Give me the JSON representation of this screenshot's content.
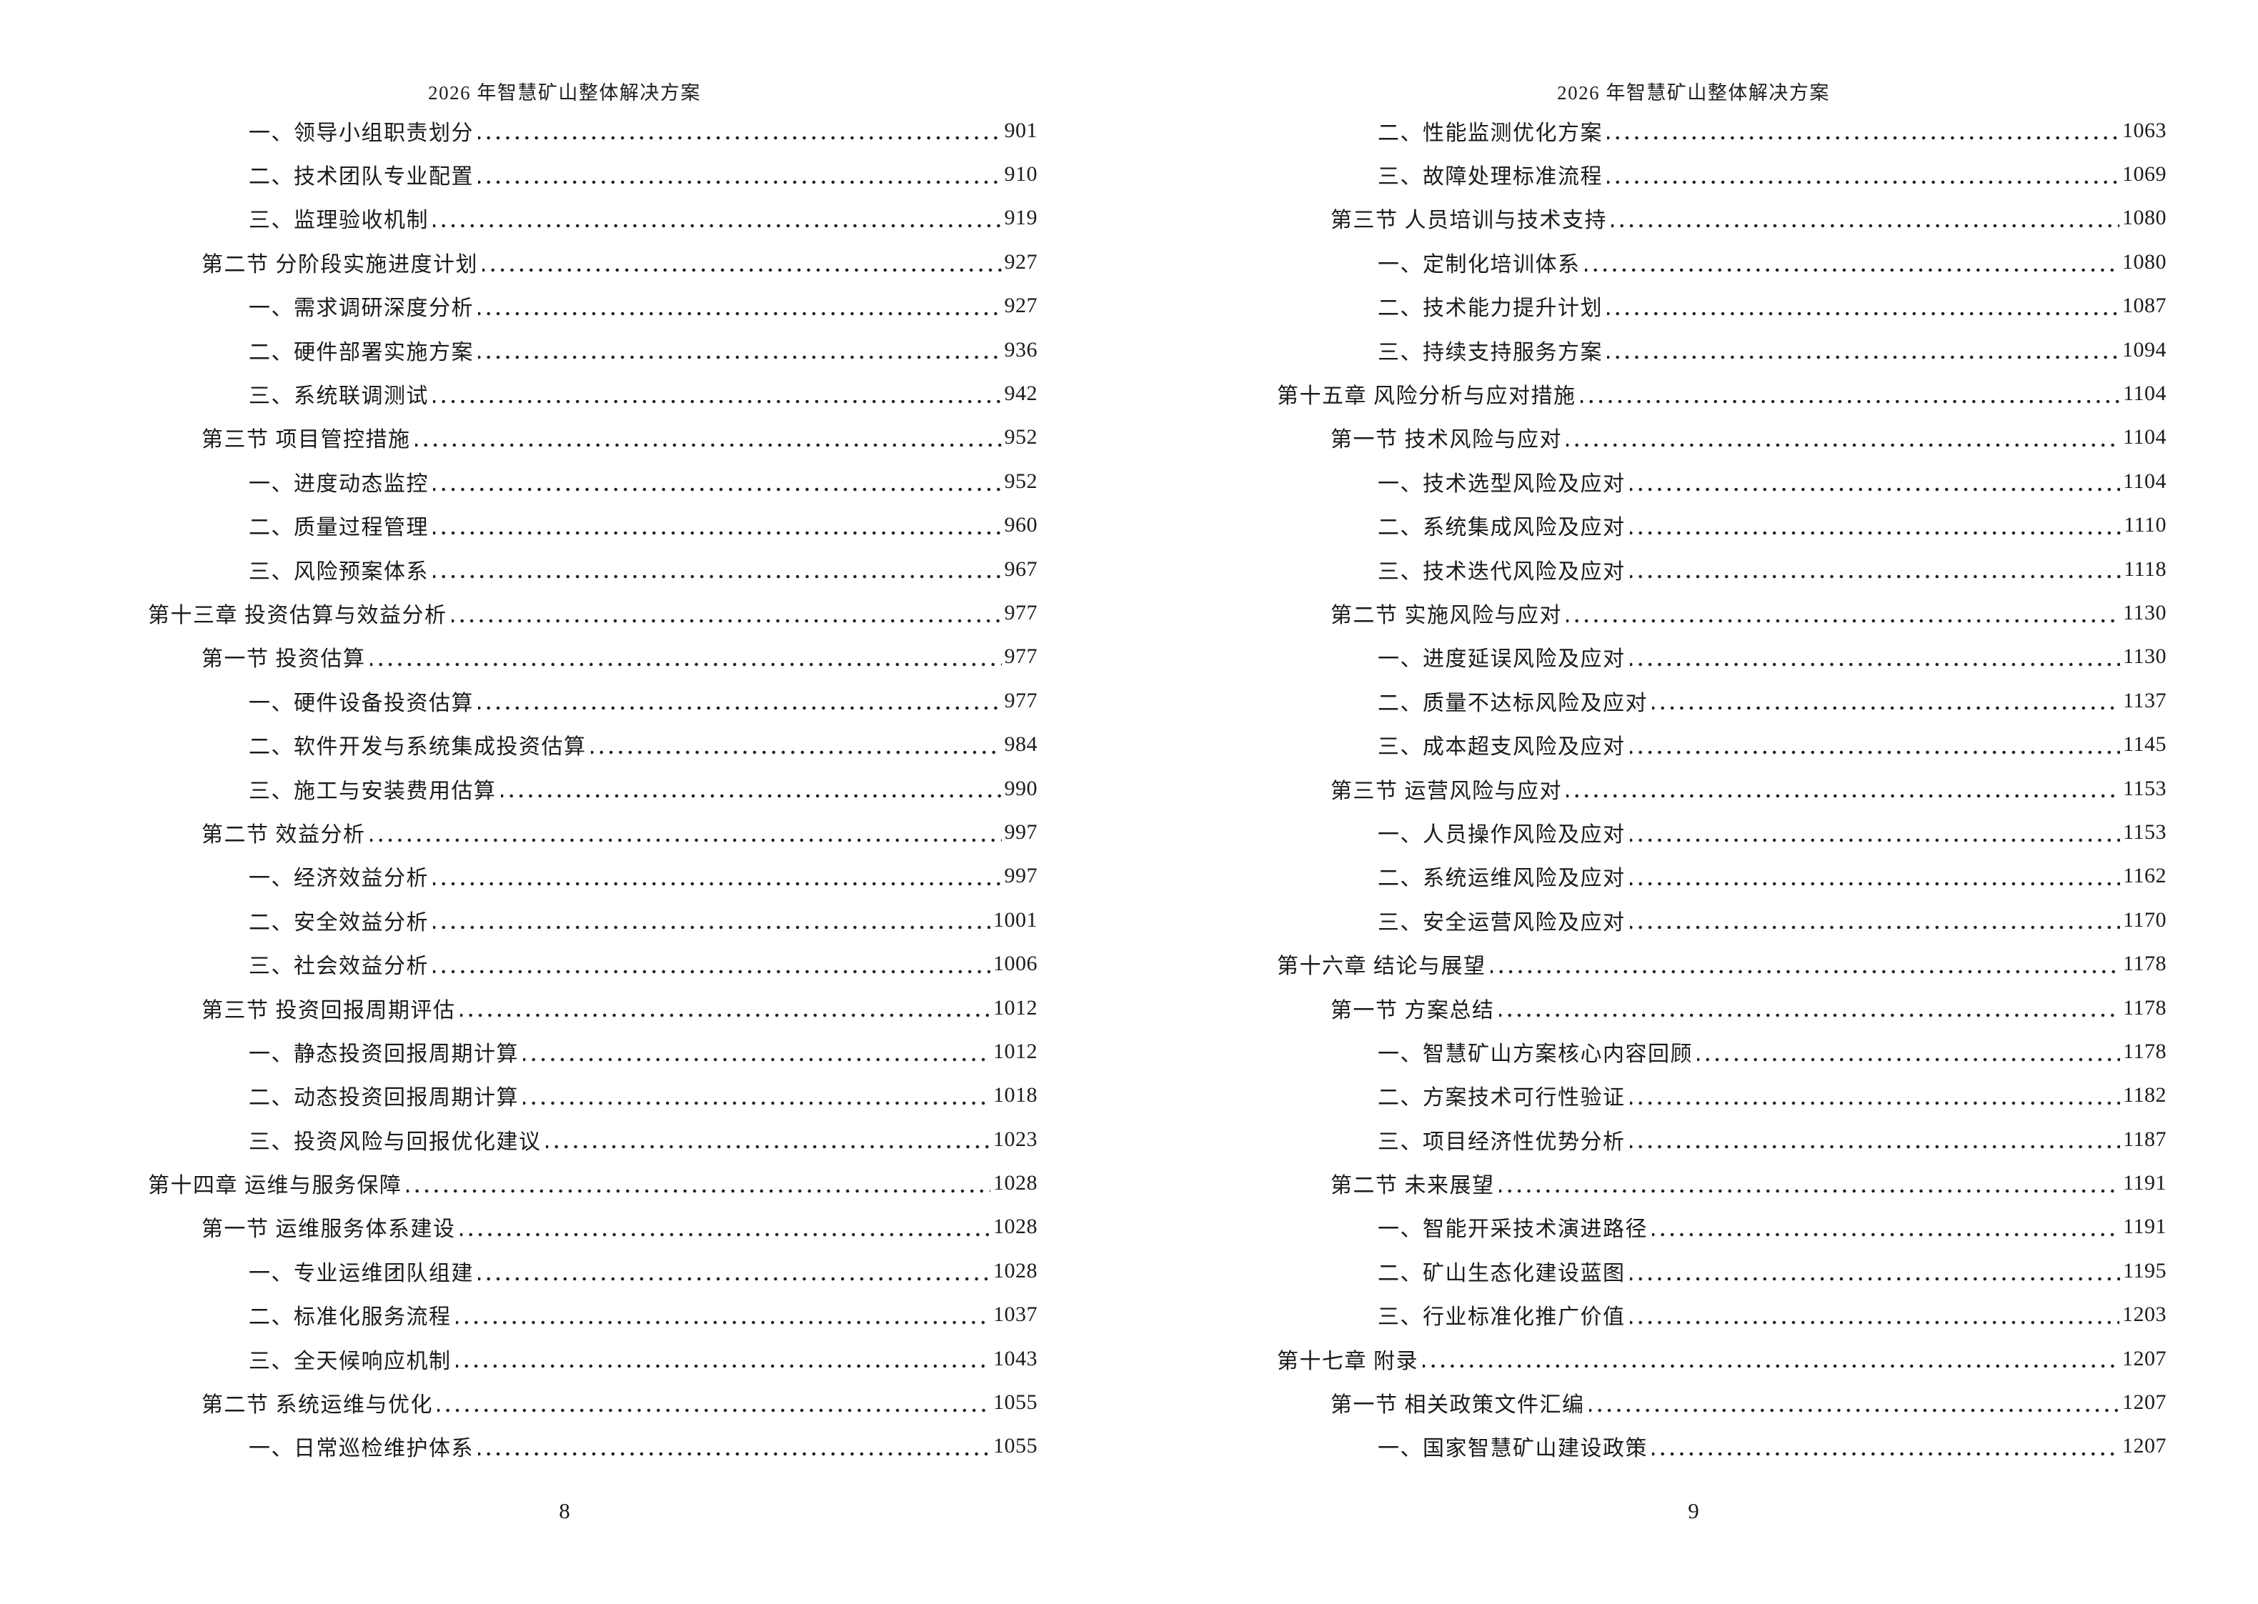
{
  "document": {
    "header_title": "2026 年智慧矿山整体解决方案",
    "colors": {
      "text": "#1b1b1b",
      "background": "#ffffff"
    }
  },
  "pages": [
    {
      "page_number": "8",
      "entries": [
        {
          "level": "item",
          "label": "一、领导小组职责划分",
          "page": "901"
        },
        {
          "level": "item",
          "label": "二、技术团队专业配置",
          "page": "910"
        },
        {
          "level": "item",
          "label": "三、监理验收机制",
          "page": "919"
        },
        {
          "level": "section",
          "label": "第二节 分阶段实施进度计划",
          "page": "927"
        },
        {
          "level": "item",
          "label": "一、需求调研深度分析",
          "page": "927"
        },
        {
          "level": "item",
          "label": "二、硬件部署实施方案",
          "page": "936"
        },
        {
          "level": "item",
          "label": "三、系统联调测试",
          "page": "942"
        },
        {
          "level": "section",
          "label": "第三节 项目管控措施",
          "page": "952"
        },
        {
          "level": "item",
          "label": "一、进度动态监控",
          "page": "952"
        },
        {
          "level": "item",
          "label": "二、质量过程管理",
          "page": "960"
        },
        {
          "level": "item",
          "label": "三、风险预案体系",
          "page": "967"
        },
        {
          "level": "chapter",
          "label": "第十三章 投资估算与效益分析",
          "page": "977"
        },
        {
          "level": "section",
          "label": "第一节 投资估算",
          "page": "977"
        },
        {
          "level": "item",
          "label": "一、硬件设备投资估算",
          "page": "977"
        },
        {
          "level": "item",
          "label": "二、软件开发与系统集成投资估算",
          "page": "984"
        },
        {
          "level": "item",
          "label": "三、施工与安装费用估算",
          "page": "990"
        },
        {
          "level": "section",
          "label": "第二节 效益分析",
          "page": "997"
        },
        {
          "level": "item",
          "label": "一、经济效益分析",
          "page": "997"
        },
        {
          "level": "item",
          "label": "二、安全效益分析",
          "page": "1001"
        },
        {
          "level": "item",
          "label": "三、社会效益分析",
          "page": "1006"
        },
        {
          "level": "section",
          "label": "第三节 投资回报周期评估",
          "page": "1012"
        },
        {
          "level": "item",
          "label": "一、静态投资回报周期计算",
          "page": "1012"
        },
        {
          "level": "item",
          "label": "二、动态投资回报周期计算",
          "page": "1018"
        },
        {
          "level": "item",
          "label": "三、投资风险与回报优化建议",
          "page": "1023"
        },
        {
          "level": "chapter",
          "label": "第十四章 运维与服务保障",
          "page": "1028"
        },
        {
          "level": "section",
          "label": "第一节 运维服务体系建设",
          "page": "1028"
        },
        {
          "level": "item",
          "label": "一、专业运维团队组建",
          "page": "1028"
        },
        {
          "level": "item",
          "label": "二、标准化服务流程",
          "page": "1037"
        },
        {
          "level": "item",
          "label": "三、全天候响应机制",
          "page": "1043"
        },
        {
          "level": "section",
          "label": "第二节 系统运维与优化",
          "page": "1055"
        },
        {
          "level": "item",
          "label": "一、日常巡检维护体系",
          "page": "1055"
        }
      ]
    },
    {
      "page_number": "9",
      "entries": [
        {
          "level": "item",
          "label": "二、性能监测优化方案",
          "page": "1063"
        },
        {
          "level": "item",
          "label": "三、故障处理标准流程",
          "page": "1069"
        },
        {
          "level": "section",
          "label": "第三节 人员培训与技术支持",
          "page": "1080"
        },
        {
          "level": "item",
          "label": "一、定制化培训体系",
          "page": "1080"
        },
        {
          "level": "item",
          "label": "二、技术能力提升计划",
          "page": "1087"
        },
        {
          "level": "item",
          "label": "三、持续支持服务方案",
          "page": "1094"
        },
        {
          "level": "chapter",
          "label": "第十五章 风险分析与应对措施",
          "page": "1104"
        },
        {
          "level": "section",
          "label": "第一节 技术风险与应对",
          "page": "1104"
        },
        {
          "level": "item",
          "label": "一、技术选型风险及应对",
          "page": "1104"
        },
        {
          "level": "item",
          "label": "二、系统集成风险及应对",
          "page": "1110"
        },
        {
          "level": "item",
          "label": "三、技术迭代风险及应对",
          "page": "1118"
        },
        {
          "level": "section",
          "label": "第二节 实施风险与应对",
          "page": "1130"
        },
        {
          "level": "item",
          "label": "一、进度延误风险及应对",
          "page": "1130"
        },
        {
          "level": "item",
          "label": "二、质量不达标风险及应对",
          "page": "1137"
        },
        {
          "level": "item",
          "label": "三、成本超支风险及应对",
          "page": "1145"
        },
        {
          "level": "section",
          "label": "第三节 运营风险与应对",
          "page": "1153"
        },
        {
          "level": "item",
          "label": "一、人员操作风险及应对",
          "page": "1153"
        },
        {
          "level": "item",
          "label": "二、系统运维风险及应对",
          "page": "1162"
        },
        {
          "level": "item",
          "label": "三、安全运营风险及应对",
          "page": "1170"
        },
        {
          "level": "chapter",
          "label": "第十六章 结论与展望",
          "page": "1178"
        },
        {
          "level": "section",
          "label": "第一节 方案总结",
          "page": "1178"
        },
        {
          "level": "item",
          "label": "一、智慧矿山方案核心内容回顾",
          "page": "1178"
        },
        {
          "level": "item",
          "label": "二、方案技术可行性验证",
          "page": "1182"
        },
        {
          "level": "item",
          "label": "三、项目经济性优势分析",
          "page": "1187"
        },
        {
          "level": "section",
          "label": "第二节 未来展望",
          "page": "1191"
        },
        {
          "level": "item",
          "label": "一、智能开采技术演进路径",
          "page": "1191"
        },
        {
          "level": "item",
          "label": "二、矿山生态化建设蓝图",
          "page": "1195"
        },
        {
          "level": "item",
          "label": "三、行业标准化推广价值",
          "page": "1203"
        },
        {
          "level": "chapter",
          "label": "第十七章 附录",
          "page": "1207"
        },
        {
          "level": "section",
          "label": "第一节 相关政策文件汇编",
          "page": "1207"
        },
        {
          "level": "item",
          "label": "一、国家智慧矿山建设政策",
          "page": "1207"
        }
      ]
    }
  ]
}
